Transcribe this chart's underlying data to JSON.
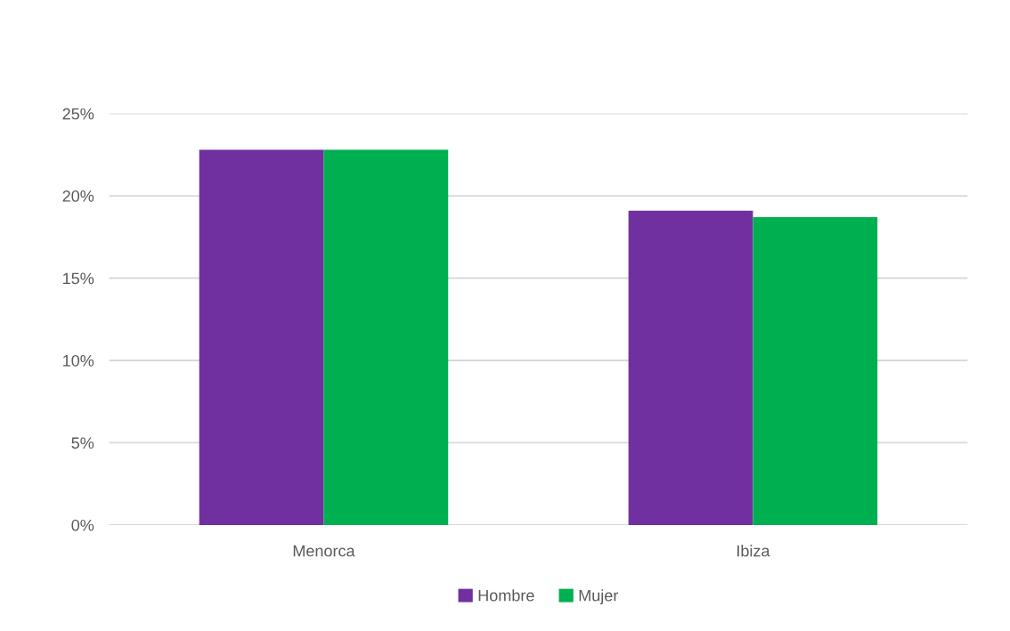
{
  "chart_data": {
    "type": "bar",
    "categories": [
      "Menorca",
      "Ibiza"
    ],
    "series": [
      {
        "name": "Hombre",
        "color": "#7030a0",
        "values": [
          22.8,
          19.1
        ]
      },
      {
        "name": "Mujer",
        "color": "#00b050",
        "values": [
          22.8,
          18.7
        ]
      }
    ],
    "ylim": [
      0,
      25
    ],
    "yticks": [
      {
        "value": 0,
        "label": "0%"
      },
      {
        "value": 5,
        "label": "5%"
      },
      {
        "value": 10,
        "label": "10%"
      },
      {
        "value": 15,
        "label": "15%"
      },
      {
        "value": 20,
        "label": "20%"
      },
      {
        "value": 25,
        "label": "25%"
      }
    ],
    "grid": "y",
    "legend": "bottom"
  }
}
